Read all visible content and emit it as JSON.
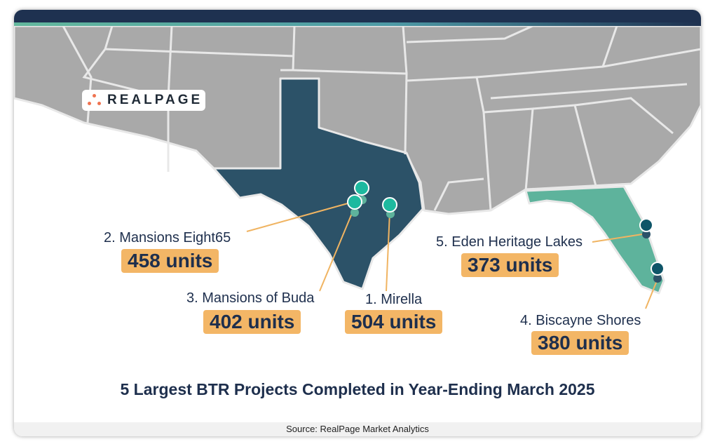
{
  "colors": {
    "header": "#1e3150",
    "land": "#a9a9a9",
    "texas": "#2c5268",
    "florida": "#5eb39c",
    "pin_texas": "#1db99f",
    "pin_florida": "#0e5568",
    "label_box": "#f3b666",
    "text": "#1e2f4d"
  },
  "logo": {
    "text": "REALPAGE"
  },
  "projects": [
    {
      "rank_name": "1. Mirella",
      "units": "504 units",
      "state": "Texas"
    },
    {
      "rank_name": "2. Mansions Eight65",
      "units": "458 units",
      "state": "Texas"
    },
    {
      "rank_name": "3. Mansions of Buda",
      "units": "402 units",
      "state": "Texas"
    },
    {
      "rank_name": "4. Biscayne Shores",
      "units": "380 units",
      "state": "Florida"
    },
    {
      "rank_name": "5. Eden Heritage Lakes",
      "units": "373 units",
      "state": "Florida"
    }
  ],
  "title": "5 Largest BTR Projects Completed in Year-Ending March 2025",
  "source": "Source: RealPage Market Analytics"
}
